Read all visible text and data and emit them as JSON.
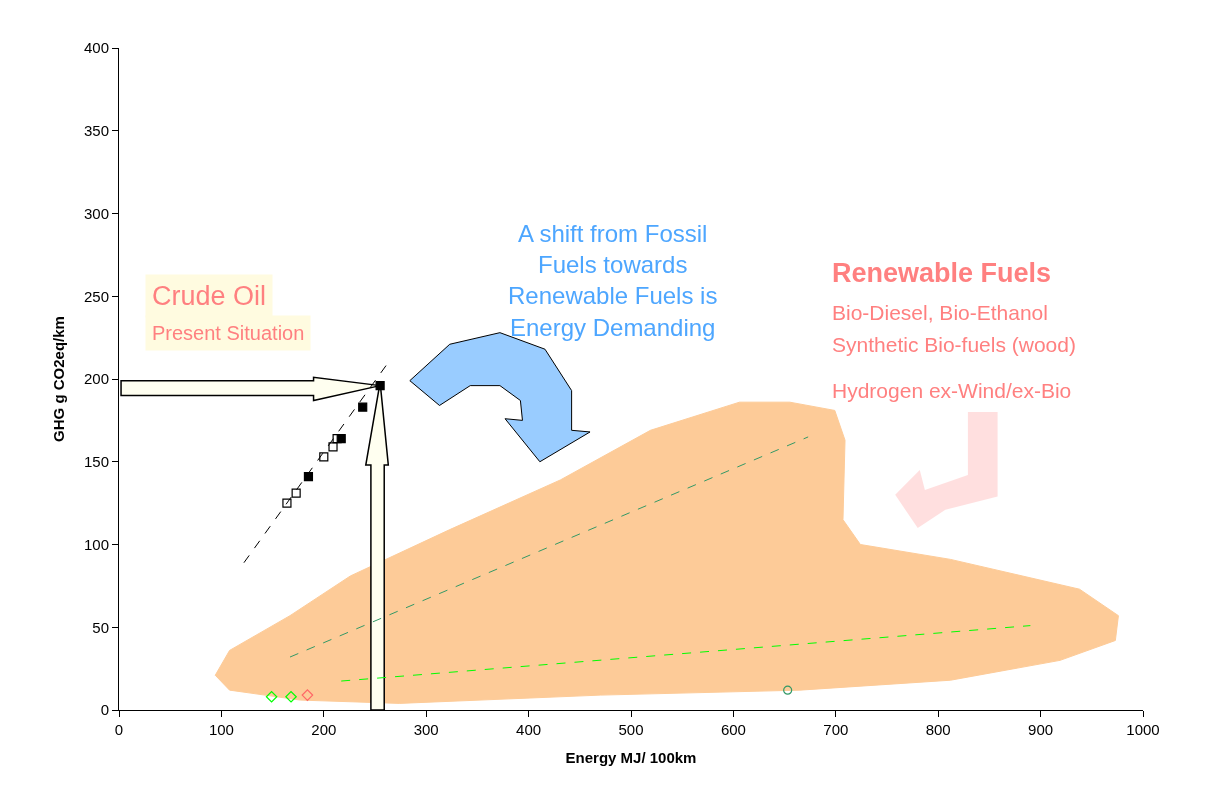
{
  "chart_data": {
    "type": "scatter",
    "xlabel": "Energy MJ/ 100km",
    "ylabel": "GHG g CO2eq/km",
    "xlim": [
      0,
      1000
    ],
    "xticks": [
      0,
      100,
      200,
      300,
      400,
      500,
      600,
      700,
      800,
      900,
      1000
    ],
    "ylim": [
      0,
      400
    ],
    "yticks": [
      0,
      50,
      100,
      150,
      200,
      250,
      300,
      350,
      400
    ],
    "grid": false,
    "series": [
      {
        "marker": "square",
        "color": "#000000",
        "x": [
          213,
          209,
          200,
          173,
          164
        ],
        "values": [
          164,
          159,
          153,
          131,
          125
        ]
      },
      {
        "marker": "square",
        "color": "#000000",
        "x": [
          255,
          238,
          217,
          185
        ],
        "values": [
          196,
          183,
          164,
          141
        ]
      },
      {
        "marker": "diamond",
        "color": "#00ff00",
        "x": [
          149,
          168
        ],
        "values": [
          8,
          8
        ]
      },
      {
        "marker": "diamond",
        "color": "#ff6666",
        "x": [
          184
        ],
        "values": [
          9
        ]
      },
      {
        "marker": "circle",
        "color": "#339966",
        "x": [
          653
        ],
        "values": [
          12
        ]
      },
      {
        "type": "line",
        "line_style": "dashed",
        "color": "#000000",
        "x": [
          122,
          263
        ],
        "values": [
          89,
          210
        ]
      },
      {
        "type": "line",
        "line_style": "dashed",
        "color": "#339966",
        "x": [
          167,
          673
        ],
        "values": [
          32,
          165
        ]
      },
      {
        "type": "line",
        "line_style": "dashed",
        "color": "#00ff00",
        "x": [
          217,
          890
        ],
        "values": [
          17.5,
          51
        ]
      }
    ],
    "annotations": [
      "Crude Oil",
      "Present Situation",
      "A shift from Fossil Fuels towards Renewable Fuels is Energy Demanding",
      "Renewable Fuels",
      "Bio-Diesel, Bio-Ethanol",
      "Synthetic Bio-fuels (wood)",
      "Hydrogen ex-Wind/ex-Bio"
    ]
  }
}
